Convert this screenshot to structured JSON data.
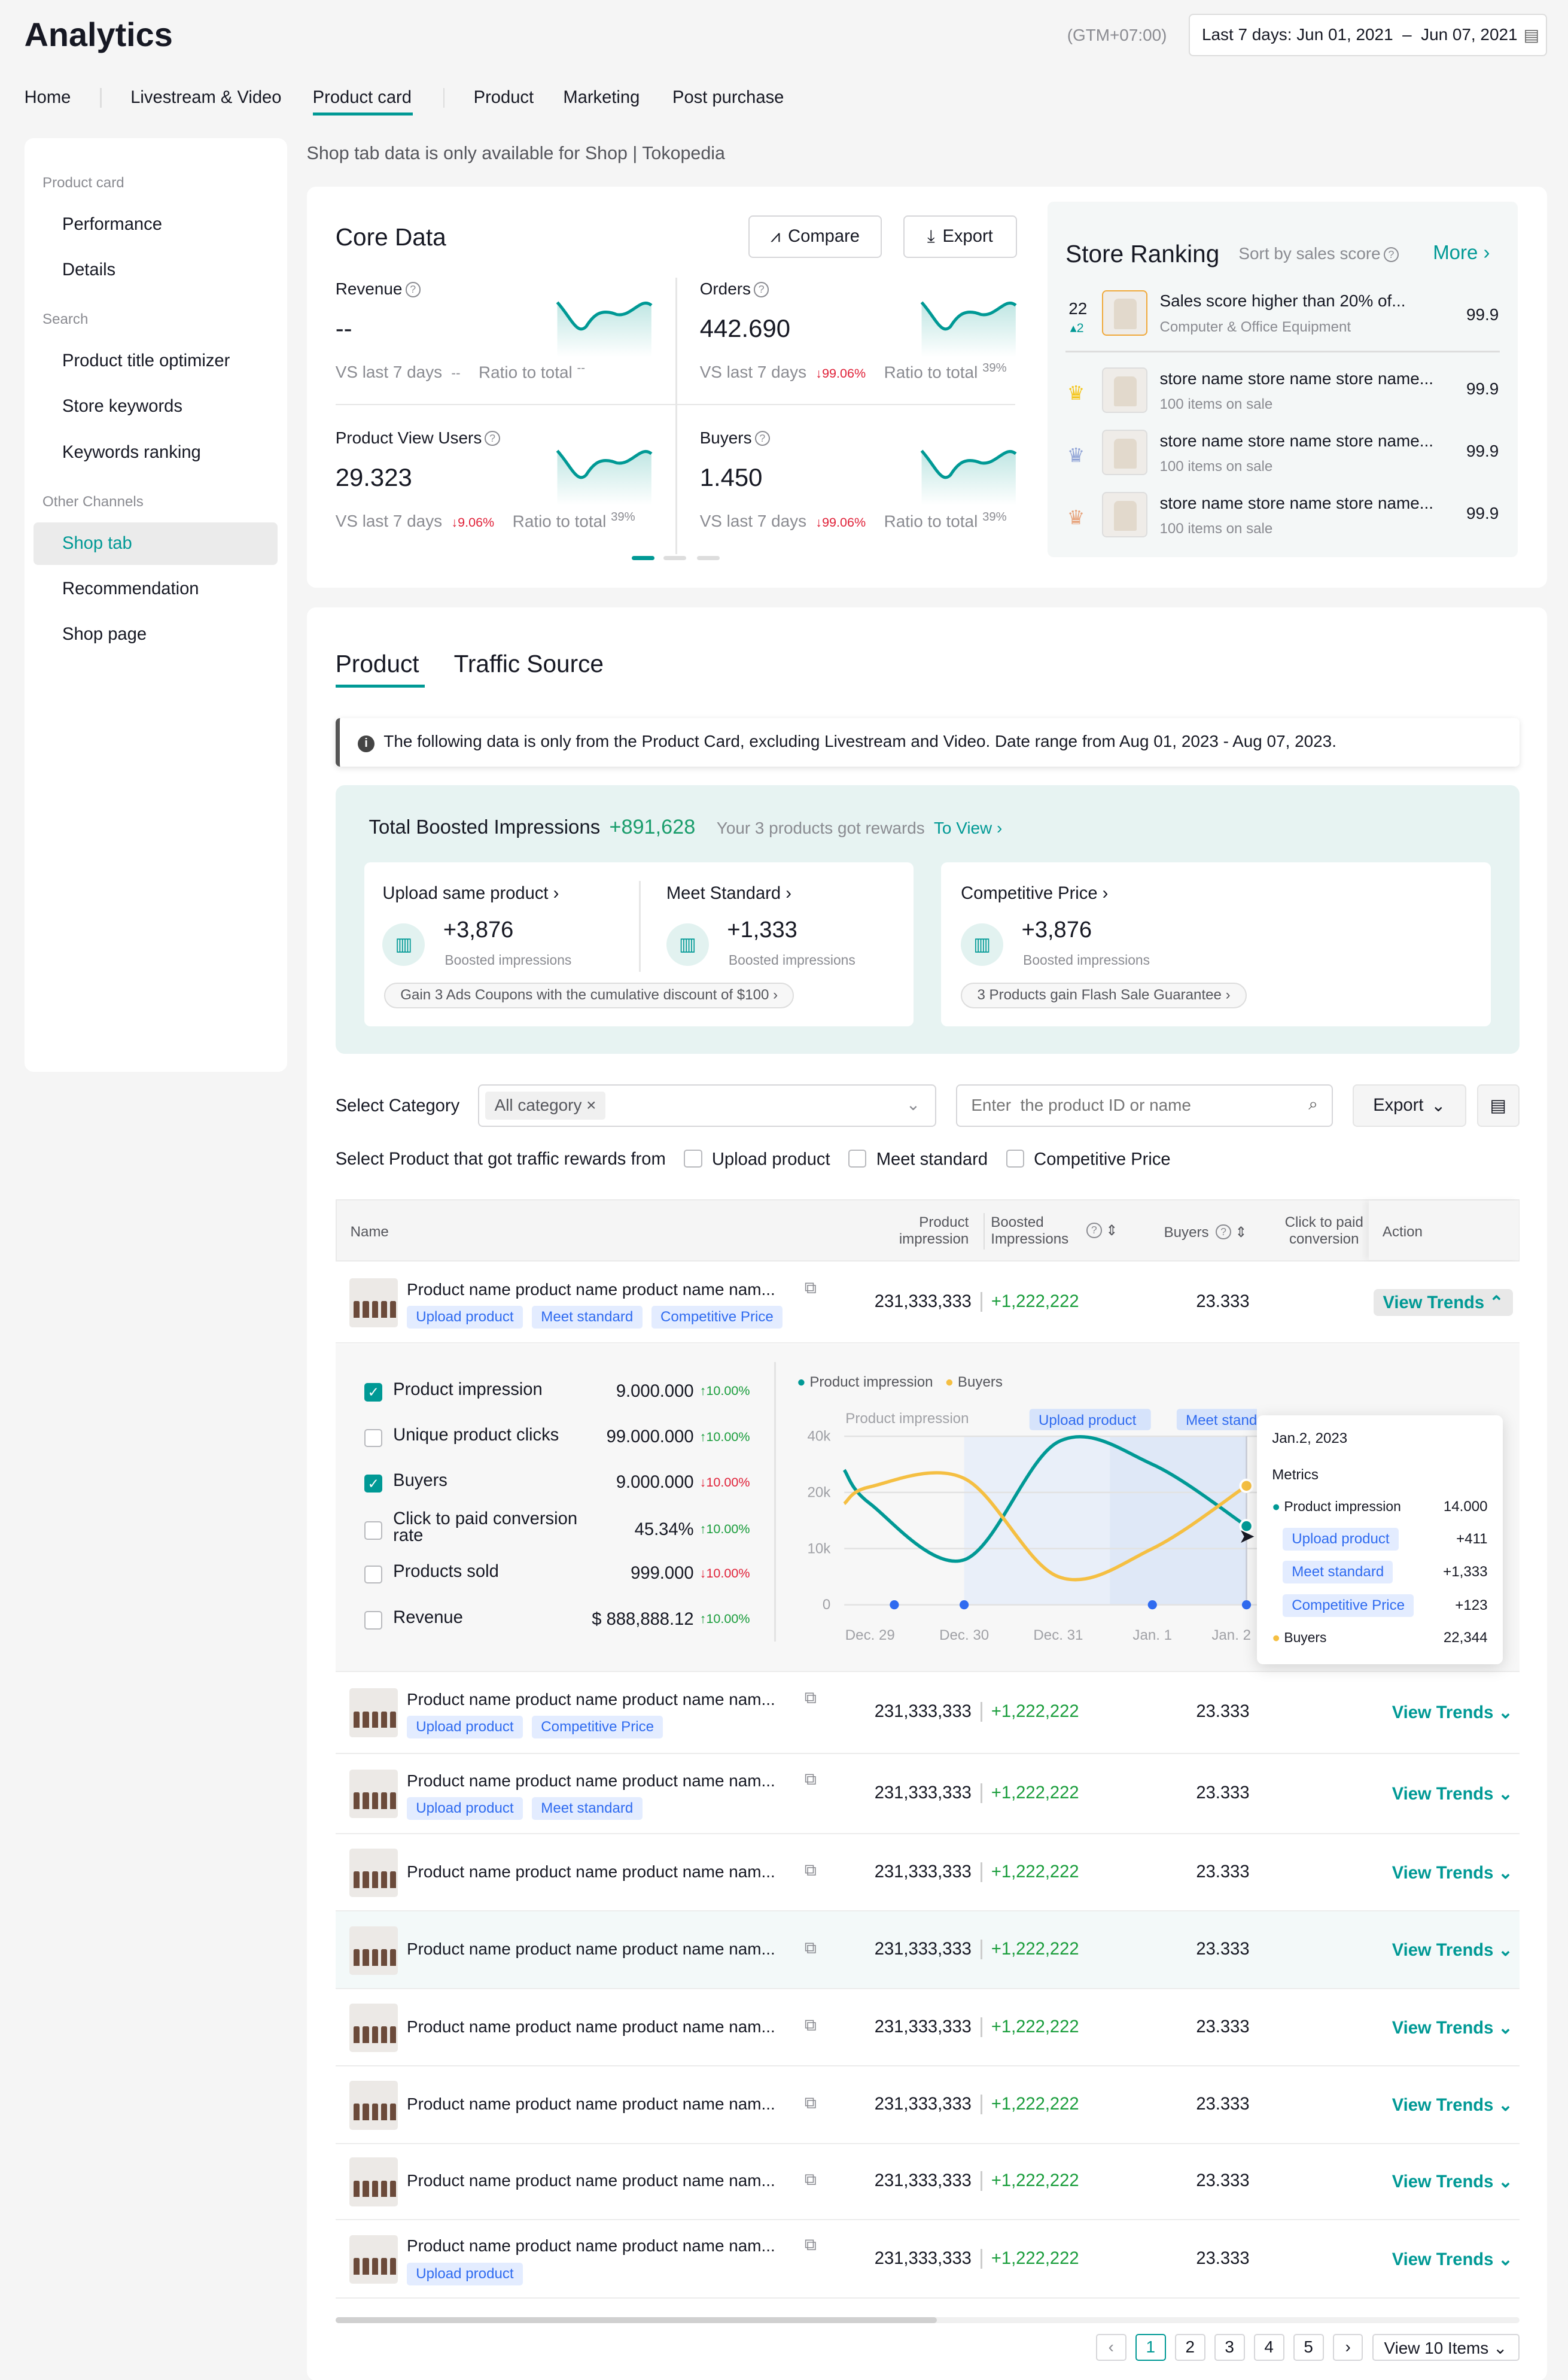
{
  "header": {
    "title": "Analytics",
    "timezone": "(GTM+07:00)",
    "date_range": "Last 7 days: Jun 01, 2021  –  Jun 07, 2021"
  },
  "nav": {
    "tabs": [
      "Home",
      "Livestream & Video",
      "Product card",
      "Product",
      "Marketing",
      "Post purchase"
    ],
    "active": "Product card"
  },
  "sidebar": {
    "groups": [
      {
        "title": "Product card",
        "items": [
          "Performance",
          "Details"
        ]
      },
      {
        "title": "Search",
        "items": [
          "Product title optimizer",
          "Store keywords",
          "Keywords ranking"
        ]
      },
      {
        "title": "Other Channels",
        "items": [
          "Shop tab",
          "Recommendation",
          "Shop page"
        ]
      }
    ],
    "active": "Shop tab"
  },
  "notice": "Shop tab data is only available for Shop | Tokopedia",
  "core": {
    "title": "Core Data",
    "compare": "Compare",
    "export": "Export",
    "metrics": [
      {
        "label": "Revenue",
        "value": "--",
        "vs": "VS last 7 days",
        "change": "--",
        "ratio_label": "Ratio to total",
        "ratio": "--"
      },
      {
        "label": "Orders",
        "value": "442.690",
        "vs": "VS last 7 days",
        "change": "99.06%",
        "ratio_label": "Ratio to total",
        "ratio": "39%"
      },
      {
        "label": "Product View Users",
        "value": "29.323",
        "vs": "VS last 7 days",
        "change": "9.06%",
        "ratio_label": "Ratio to total",
        "ratio": "39%"
      },
      {
        "label": "Buyers",
        "value": "1.450",
        "vs": "VS last 7 days",
        "change": "99.06%",
        "ratio_label": "Ratio to total",
        "ratio": "39%"
      }
    ],
    "carousel_pages": 3,
    "carousel_active": 1
  },
  "ranking": {
    "title": "Store Ranking",
    "sort": "Sort by sales score",
    "more": "More",
    "self": {
      "rank": "22",
      "delta": "2",
      "name": "Sales score higher than 20% of...",
      "sub": "Computer & Office Equipment",
      "score": "99.9"
    },
    "items": [
      {
        "medal": "gold",
        "name": "store name store name store name...",
        "sub": "100 items on sale",
        "score": "99.9"
      },
      {
        "medal": "silver",
        "name": "store name store name store name...",
        "sub": "100 items on sale",
        "score": "99.9"
      },
      {
        "medal": "bronze",
        "name": "store name store name store name...",
        "sub": "100 items on sale",
        "score": "99.9"
      }
    ]
  },
  "section": {
    "tabs": [
      "Product",
      "Traffic Source"
    ],
    "active": "Product",
    "info": "The following data is only from the Product Card, excluding Livestream and Video. Date range from Aug 01, 2023 - Aug 07, 2023."
  },
  "boost": {
    "title": "Total Boosted Impressions",
    "total": "+891,628",
    "rewards_text": "Your 3 products got rewards",
    "rewards_link": "To View",
    "cards": [
      {
        "label": "Upload same product",
        "value": "+3,876",
        "sub": "Boosted impressions"
      },
      {
        "label": "Meet Standard",
        "value": "+1,333",
        "sub": "Boosted impressions"
      },
      {
        "label": "Competitive Price",
        "value": "+3,876",
        "sub": "Boosted impressions"
      }
    ],
    "promo1": "Gain 3 Ads Coupons with the cumulative discount of $100",
    "promo2": "3 Products gain Flash Sale Guarantee"
  },
  "filters": {
    "category_label": "Select Category",
    "category_value": "All category",
    "search_placeholder": "Enter  the product ID or name",
    "export": "Export",
    "reward_label": "Select Product that got traffic rewards from",
    "reward_options": [
      "Upload product",
      "Meet standard",
      "Competitive Price"
    ]
  },
  "table": {
    "headers": {
      "name": "Name",
      "impression": "Product impression",
      "boosted": "Boosted Impressions",
      "buyers": "Buyers",
      "ctr": "Click to paid conversion rate",
      "action": "Action"
    },
    "rows": [
      {
        "name": "Product name product name product name nam...",
        "tags": [
          "Upload product",
          "Meet standard",
          "Competitive Price"
        ],
        "impression": "231,333,333",
        "boosted": "+1,222,222",
        "buyers": "23.333",
        "action": "View Trends",
        "expanded": true
      },
      {
        "name": "Product name product name product name nam...",
        "tags": [
          "Upload product",
          "Competitive Price"
        ],
        "impression": "231,333,333",
        "boosted": "+1,222,222",
        "buyers": "23.333",
        "action": "View Trends"
      },
      {
        "name": "Product name product name product name nam...",
        "tags": [
          "Upload product",
          "Meet standard"
        ],
        "impression": "231,333,333",
        "boosted": "+1,222,222",
        "buyers": "23.333",
        "action": "View Trends"
      },
      {
        "name": "Product name product name product name nam...",
        "tags": [],
        "impression": "231,333,333",
        "boosted": "+1,222,222",
        "buyers": "23.333",
        "action": "View Trends"
      },
      {
        "name": "Product name product name product name nam...",
        "tags": [],
        "impression": "231,333,333",
        "boosted": "+1,222,222",
        "buyers": "23.333",
        "action": "View Trends",
        "highlight": true
      },
      {
        "name": "Product name product name product name nam...",
        "tags": [],
        "impression": "231,333,333",
        "boosted": "+1,222,222",
        "buyers": "23.333",
        "action": "View Trends"
      },
      {
        "name": "Product name product name product name nam...",
        "tags": [],
        "impression": "231,333,333",
        "boosted": "+1,222,222",
        "buyers": "23.333",
        "action": "View Trends"
      },
      {
        "name": "Product name product name product name nam...",
        "tags": [],
        "impression": "231,333,333",
        "boosted": "+1,222,222",
        "buyers": "23.333",
        "action": "View Trends"
      },
      {
        "name": "Product name product name product name nam...",
        "tags": [
          "Upload product"
        ],
        "impression": "231,333,333",
        "boosted": "+1,222,222",
        "buyers": "23.333",
        "action": "View Trends"
      }
    ]
  },
  "trend": {
    "metrics": [
      {
        "label": "Product impression",
        "value": "9.000.000",
        "change": "10.00%",
        "dir": "up",
        "checked": true
      },
      {
        "label": "Unique product clicks",
        "value": "99.000.000",
        "change": "10.00%",
        "dir": "up",
        "checked": false
      },
      {
        "label": "Buyers",
        "value": "9.000.000",
        "change": "10.00%",
        "dir": "down",
        "checked": true
      },
      {
        "label": "Click to paid conversion rate",
        "value": "45.34%",
        "change": "10.00%",
        "dir": "up",
        "checked": false
      },
      {
        "label": "Products sold",
        "value": "999.000",
        "change": "10.00%",
        "dir": "down",
        "checked": false
      },
      {
        "label": "Revenue",
        "value": "$ 888,888.12",
        "change": "10.00%",
        "dir": "up",
        "checked": false
      }
    ],
    "tooltip": {
      "date": "Jan.2, 2023",
      "metrics_label": "Metrics",
      "impression_label": "Product impression",
      "impression": "14.000",
      "rewards": [
        {
          "label": "Upload product",
          "value": "+411"
        },
        {
          "label": "Meet standard",
          "value": "+1,333"
        },
        {
          "label": "Competitive Price",
          "value": "+123"
        }
      ],
      "buyers_label": "Buyers",
      "buyers": "22,344"
    }
  },
  "chart_data": {
    "type": "line",
    "ylabel": "Product impression",
    "x": [
      "Dec. 29",
      "Dec. 30",
      "Dec. 31",
      "Jan. 1",
      "Jan. 2"
    ],
    "yticks": [
      "0",
      "10k",
      "20k",
      "40k"
    ],
    "series": [
      {
        "name": "Product impression",
        "color": "#009995",
        "values": [
          18000,
          8000,
          38000,
          30000,
          14000
        ]
      },
      {
        "name": "Buyers",
        "color": "#f5bf42",
        "values": [
          22000,
          25000,
          5000,
          10000,
          22344
        ]
      }
    ],
    "bands": [
      {
        "label": "Upload product",
        "from": "Dec. 30",
        "to": "Jan. 1"
      },
      {
        "label": "Meet standard",
        "from": "Jan. 1",
        "to": "Jan. 2"
      }
    ],
    "event_markers": [
      "Dec. 29",
      "Dec. 30",
      "Jan. 1",
      "Jan. 2"
    ]
  },
  "pagination": {
    "pages": [
      "1",
      "2",
      "3",
      "4",
      "5"
    ],
    "active": "1",
    "page_size": "View 10 Items"
  },
  "colors": {
    "accent": "#009995",
    "up": "#1a9d3c",
    "down": "#e0233a",
    "tag": "#2f6bf0"
  }
}
